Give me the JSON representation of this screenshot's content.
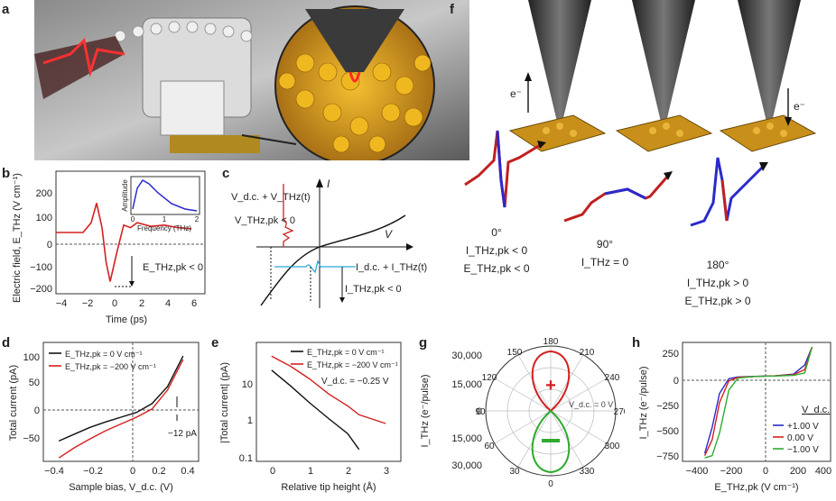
{
  "panels": {
    "a": {
      "letter": "a"
    },
    "b": {
      "letter": "b",
      "ylabel": "Electric field, E_THz (V cm⁻¹)",
      "xlabel": "Time (ps)",
      "xticks": [
        "−4",
        "−2",
        "0",
        "2",
        "4",
        "6"
      ],
      "yticks": [
        "200",
        "100",
        "0",
        "−100",
        "−200"
      ],
      "inset_ylabel": "Amplitude",
      "inset_xlabel": "Frequency (THz)",
      "inset_xticks": [
        "0",
        "1",
        "2"
      ],
      "annotation": "E_THz,pk < 0"
    },
    "c": {
      "letter": "c",
      "label_voltage": "V_d.c. + V_THz(t)",
      "label_vpk": "V_THz,pk < 0",
      "label_current": "I_d.c. + I_THz(t)",
      "label_ipk": "I_THz,pk < 0",
      "axis_i": "I",
      "axis_v": "V"
    },
    "d": {
      "letter": "d",
      "ylabel": "Total current (pA)",
      "xlabel": "Sample bias, V_d.c. (V)",
      "xticks": [
        "−0.4",
        "−0.2",
        "0",
        "0.2",
        "0.4"
      ],
      "yticks": [
        "100",
        "50",
        "0",
        "−50"
      ],
      "legend": [
        "E_THz,pk = 0 V cm⁻¹",
        "E_THz,pk = −200 V cm⁻¹"
      ],
      "annotation": "−12 pA"
    },
    "e": {
      "letter": "e",
      "ylabel": "|Total current| (pA)",
      "xlabel": "Relative tip height (Å)",
      "xticks": [
        "0",
        "1",
        "2",
        "3"
      ],
      "yticks": [
        "10",
        "1",
        "0.1"
      ],
      "legend": [
        "E_THz,pk = 0 V cm⁻¹",
        "E_THz,pk = −200 V cm⁻¹"
      ],
      "note": "V_d.c. = −0.25 V"
    },
    "f": {
      "letter": "f",
      "electron": "e⁻",
      "angle_0": "0°",
      "angle_90": "90°",
      "angle_180": "180°",
      "text_0a": "I_THz,pk < 0",
      "text_0b": "E_THz,pk < 0",
      "text_90": "I_THz = 0",
      "text_180a": "I_THz,pk > 0",
      "text_180b": "E_THz,pk > 0"
    },
    "g": {
      "letter": "g",
      "ylabel": "I_THz (e⁻/pulse)",
      "rticks": [
        "30,000",
        "15,000",
        "0",
        "15,000",
        "30,000"
      ],
      "angles": [
        "180",
        "210",
        "240",
        "270",
        "300",
        "330",
        "0",
        "30",
        "60",
        "90",
        "120",
        "150"
      ],
      "note": "V_d.c. = 0 V"
    },
    "h": {
      "letter": "h",
      "ylabel": "I_THz (e⁻/pulse)",
      "xlabel": "E_THz,pk (V cm⁻¹)",
      "xticks": [
        "−400",
        "−200",
        "0",
        "200",
        "400"
      ],
      "yticks": [
        "250",
        "0",
        "−250",
        "−500",
        "−750"
      ],
      "legend_title": "V_d.c.",
      "legend": [
        "+1.00 V",
        "0.00 V",
        "−1.00 V"
      ]
    }
  },
  "colors": {
    "red": "#d42020",
    "black": "#111111",
    "blue": "#2a2acc",
    "green": "#2eaa2e",
    "cyan": "#2aa8d8",
    "gold": "#d4a010"
  },
  "chart_data": [
    {
      "type": "line",
      "panel": "b",
      "x": [
        -4,
        -2,
        -1.4,
        -1,
        -0.6,
        -0.3,
        0,
        0.5,
        1,
        1.5,
        2,
        3,
        4,
        5,
        6
      ],
      "series": [
        {
          "values": [
            0,
            0,
            40,
            120,
            20,
            -120,
            -200,
            -80,
            30,
            20,
            40,
            25,
            30,
            20,
            15
          ]
        }
      ],
      "xlim": [
        -4,
        7
      ],
      "ylim": [
        -250,
        250
      ]
    },
    {
      "type": "line",
      "panel": "d",
      "x": [
        -0.4,
        -0.3,
        -0.2,
        -0.1,
        0,
        0.1,
        0.2,
        0.3,
        0.4
      ],
      "series": [
        {
          "name": "E_THz,pk = 0 V cm⁻¹",
          "values": [
            -35,
            -25,
            -15,
            -7,
            0,
            7,
            20,
            45,
            90
          ]
        },
        {
          "name": "E_THz,pk = −200 V cm⁻¹",
          "values": [
            -60,
            -45,
            -32,
            -20,
            -10,
            0,
            12,
            40,
            85
          ]
        }
      ],
      "xlim": [
        -0.5,
        0.5
      ],
      "ylim": [
        -65,
        110
      ]
    },
    {
      "type": "line",
      "panel": "e",
      "x": [
        0,
        0.5,
        1,
        1.5,
        2,
        2.3,
        3
      ],
      "series": [
        {
          "name": "E_THz,pk = 0 V cm⁻¹",
          "values": [
            20,
            8,
            3,
            1.2,
            0.5,
            0.2,
            null
          ]
        },
        {
          "name": "E_THz,pk = −200 V cm⁻¹",
          "values": [
            45,
            25,
            12,
            5,
            2.5,
            1.5,
            0.9
          ]
        }
      ],
      "ylim": [
        0.1,
        100
      ],
      "yscale": "log"
    },
    {
      "type": "line",
      "panel": "h",
      "x": [
        -280,
        -240,
        -200,
        -150,
        -100,
        0,
        100,
        200,
        260,
        300
      ],
      "series": [
        {
          "name": "+1.00 V",
          "values": [
            -680,
            -450,
            -150,
            -20,
            -5,
            0,
            5,
            20,
            100,
            260
          ]
        },
        {
          "name": "0.00 V",
          "values": [
            -700,
            -560,
            -230,
            -40,
            -8,
            0,
            5,
            15,
            60,
            260
          ]
        },
        {
          "name": "−1.00 V",
          "values": [
            -720,
            -700,
            -500,
            -120,
            -15,
            0,
            3,
            10,
            30,
            260
          ]
        }
      ],
      "xlim": [
        -400,
        400
      ],
      "ylim": [
        -750,
        300
      ]
    }
  ]
}
